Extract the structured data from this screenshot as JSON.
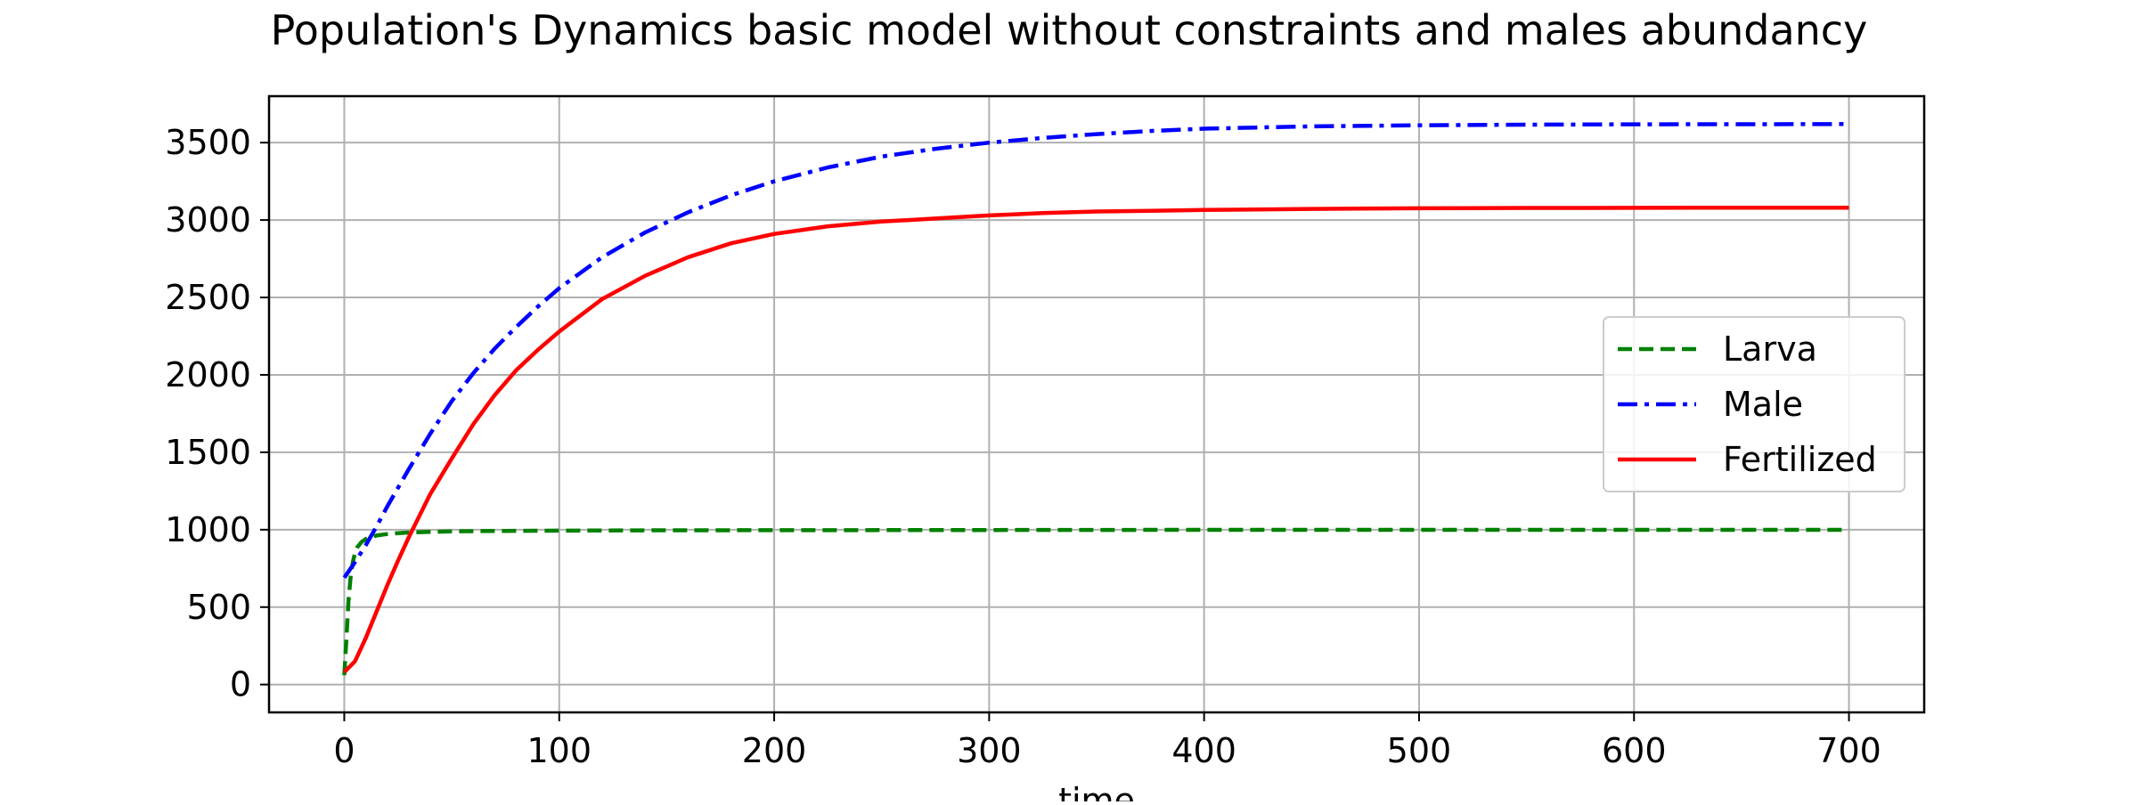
{
  "chart_data": {
    "type": "line",
    "title": "Population's Dynamics basic model without constraints and males abundancy",
    "xlabel": "time",
    "ylabel": "",
    "xlim": [
      -35,
      735
    ],
    "ylim": [
      -180,
      3800
    ],
    "xticks": [
      0,
      100,
      200,
      300,
      400,
      500,
      600,
      700
    ],
    "yticks": [
      0,
      500,
      1000,
      1500,
      2000,
      2500,
      3000,
      3500
    ],
    "grid": true,
    "legend": {
      "position": "center-right"
    },
    "series": [
      {
        "name": "Larva",
        "color": "#008000",
        "style": "dashed",
        "x": [
          0,
          1,
          2,
          3,
          4,
          5,
          6,
          8,
          10,
          12,
          15,
          20,
          25,
          30,
          40,
          50,
          75,
          100,
          150,
          200,
          300,
          400,
          500,
          600,
          700
        ],
        "y": [
          60,
          300,
          550,
          700,
          790,
          850,
          885,
          920,
          940,
          952,
          962,
          972,
          978,
          982,
          986,
          989,
          992,
          994,
          996,
          997,
          998,
          999,
          999,
          999,
          999
        ]
      },
      {
        "name": "Male",
        "color": "#0000ff",
        "style": "dashdot",
        "x": [
          0,
          5,
          10,
          15,
          20,
          30,
          40,
          50,
          60,
          70,
          80,
          90,
          100,
          120,
          140,
          160,
          180,
          200,
          225,
          250,
          275,
          300,
          325,
          350,
          375,
          400,
          450,
          500,
          550,
          600,
          650,
          700
        ],
        "y": [
          690,
          790,
          900,
          1020,
          1150,
          1390,
          1620,
          1830,
          2010,
          2170,
          2310,
          2440,
          2560,
          2760,
          2920,
          3050,
          3160,
          3250,
          3340,
          3410,
          3460,
          3500,
          3530,
          3555,
          3575,
          3590,
          3605,
          3612,
          3616,
          3618,
          3619,
          3620
        ]
      },
      {
        "name": "Fertilized",
        "color": "#ff0000",
        "style": "solid",
        "x": [
          0,
          5,
          10,
          15,
          20,
          25,
          30,
          40,
          50,
          60,
          70,
          80,
          90,
          100,
          120,
          140,
          160,
          180,
          200,
          225,
          250,
          275,
          300,
          325,
          350,
          375,
          400,
          450,
          500,
          550,
          600,
          650,
          700
        ],
        "y": [
          80,
          150,
          300,
          470,
          640,
          800,
          950,
          1230,
          1460,
          1680,
          1870,
          2030,
          2160,
          2280,
          2490,
          2640,
          2760,
          2850,
          2910,
          2960,
          2990,
          3010,
          3030,
          3045,
          3055,
          3060,
          3065,
          3072,
          3076,
          3078,
          3079,
          3080,
          3080
        ]
      }
    ]
  }
}
